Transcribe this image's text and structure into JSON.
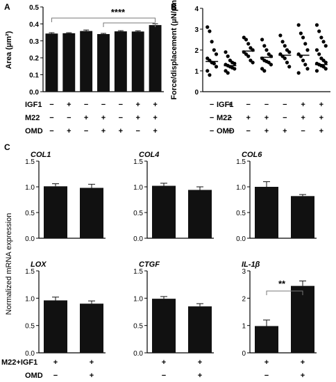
{
  "panels": {
    "A": {
      "letter": "A",
      "ylabel": "Area (µm²)",
      "yticks": [
        "0.0",
        "0.1",
        "0.2",
        "0.3",
        "0.4",
        "0.5"
      ],
      "significance": "****"
    },
    "B": {
      "letter": "B",
      "ylabel": "Force/displacement (µN/µm)",
      "yticks": [
        "0",
        "1",
        "2",
        "3",
        "4"
      ]
    },
    "C": {
      "letter": "C",
      "ylabel": "Normalized mRNA expression",
      "significance": "**"
    }
  },
  "treatment_table_AB": {
    "rows": [
      {
        "label": "IGF1",
        "marks": [
          "−",
          "+",
          "−",
          "−",
          "−",
          "+",
          "+"
        ]
      },
      {
        "label": "M22",
        "marks": [
          "−",
          "−",
          "+",
          "+",
          "−",
          "+",
          "+"
        ]
      },
      {
        "label": "OMD",
        "marks": [
          "−",
          "+",
          "−",
          "+",
          "+",
          "−",
          "+"
        ]
      }
    ]
  },
  "treatment_table_C": {
    "rows": [
      {
        "label": "M22+IGF1",
        "marks": [
          "+",
          "+"
        ]
      },
      {
        "label": "OMD",
        "marks": [
          "−",
          "+"
        ]
      }
    ]
  },
  "chart_data": [
    {
      "panel": "A",
      "type": "bar",
      "ylabel": "Area (µm²)",
      "ylim": [
        0,
        0.5
      ],
      "values": [
        0.343,
        0.345,
        0.358,
        0.34,
        0.356,
        0.355,
        0.393
      ],
      "errors": [
        0.005,
        0.003,
        0.006,
        0.004,
        0.004,
        0.004,
        0.008
      ]
    },
    {
      "panel": "B",
      "type": "scatter",
      "ylabel": "Force/displacement (µN/µm)",
      "ylim": [
        0,
        4
      ],
      "medians": [
        1.45,
        1.25,
        1.95,
        1.65,
        1.75,
        1.75,
        1.3
      ],
      "points": [
        [
          3.1,
          2.9,
          2.4,
          2.0,
          1.8,
          1.6,
          1.5,
          1.4,
          1.35,
          1.2,
          1.0,
          0.8
        ],
        [
          1.9,
          1.7,
          1.5,
          1.4,
          1.35,
          1.3,
          1.25,
          1.2,
          1.15,
          1.1,
          1.0,
          0.9
        ],
        [
          2.6,
          2.5,
          2.3,
          2.1,
          2.0,
          1.9,
          1.8,
          1.7,
          1.5,
          1.4
        ],
        [
          2.5,
          2.2,
          2.0,
          1.8,
          1.7,
          1.6,
          1.5,
          1.45,
          1.4,
          1.3,
          1.1,
          1.0
        ],
        [
          2.7,
          2.4,
          2.2,
          2.0,
          1.9,
          1.8,
          1.7,
          1.6,
          1.4,
          1.2
        ],
        [
          3.2,
          2.8,
          2.6,
          2.3,
          2.0,
          1.8,
          1.7,
          1.5,
          1.3,
          1.1,
          0.9
        ],
        [
          3.2,
          2.9,
          2.6,
          2.4,
          2.2,
          2.0,
          1.8,
          1.6,
          1.5,
          1.4,
          1.35,
          1.3,
          1.25,
          1.2,
          1.1,
          1.0
        ]
      ]
    },
    {
      "panel": "C",
      "type": "bar",
      "gene": "COL1",
      "yticks": [
        "0.0",
        "0.5",
        "1.0",
        "1.5"
      ],
      "ylim": [
        0,
        1.5
      ],
      "values": [
        1.01,
        0.98
      ],
      "errors": [
        0.05,
        0.07
      ]
    },
    {
      "panel": "C",
      "type": "bar",
      "gene": "COL4",
      "yticks": [
        "0.0",
        "0.5",
        "1.0",
        "1.5"
      ],
      "ylim": [
        0,
        1.5
      ],
      "values": [
        1.02,
        0.94
      ],
      "errors": [
        0.05,
        0.06
      ]
    },
    {
      "panel": "C",
      "type": "bar",
      "gene": "COL6",
      "yticks": [
        "0.0",
        "0.5",
        "1.0",
        "1.5"
      ],
      "ylim": [
        0,
        1.5
      ],
      "values": [
        1.0,
        0.82
      ],
      "errors": [
        0.1,
        0.03
      ]
    },
    {
      "panel": "C",
      "type": "bar",
      "gene": "LOX",
      "yticks": [
        "0.0",
        "0.5",
        "1.0",
        "1.5"
      ],
      "ylim": [
        0,
        1.5
      ],
      "values": [
        0.96,
        0.9
      ],
      "errors": [
        0.06,
        0.05
      ]
    },
    {
      "panel": "C",
      "type": "bar",
      "gene": "CTGF",
      "yticks": [
        "0.0",
        "0.5",
        "1.0",
        "1.5"
      ],
      "ylim": [
        0,
        1.5
      ],
      "values": [
        0.99,
        0.85
      ],
      "errors": [
        0.04,
        0.05
      ]
    },
    {
      "panel": "C",
      "type": "bar",
      "gene": "IL-1β",
      "yticks": [
        "0",
        "1",
        "2",
        "3"
      ],
      "ylim": [
        0,
        3
      ],
      "values": [
        0.98,
        2.45
      ],
      "errors": [
        0.22,
        0.18
      ]
    }
  ]
}
